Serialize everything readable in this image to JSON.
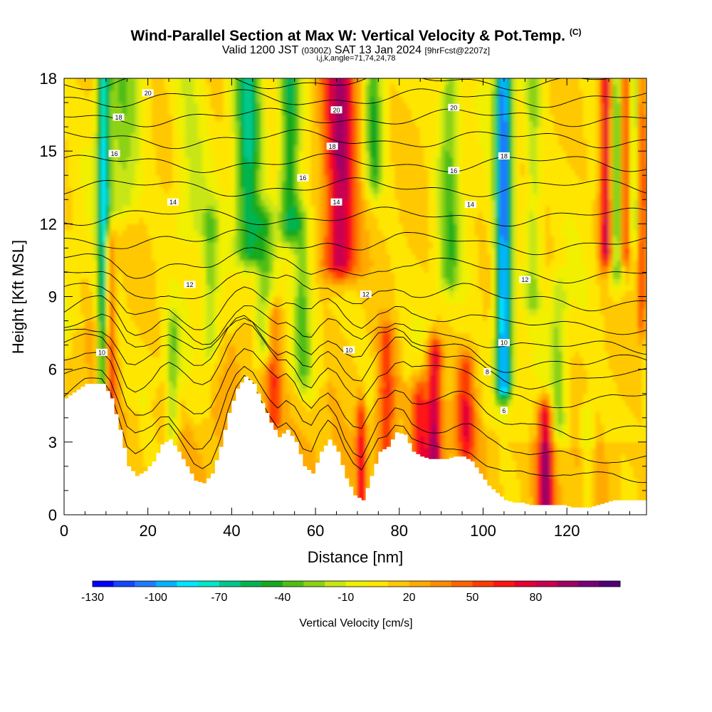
{
  "title": {
    "main": "Wind-Parallel Section at Max W: Vertical Velocity & Pot.Temp.",
    "copyright": "(C)",
    "valid_prefix": "Valid 1200 JST",
    "valid_utc": "(0300Z)",
    "valid_date": "SAT 13 Jan 2024",
    "forecast": "[9hrFcst@2207z]",
    "ijk": "i,j,k,angle=71,74,24,78"
  },
  "chart_data": {
    "type": "heatmap",
    "xlabel": "Distance [nm]",
    "ylabel": "Height [Kft MSL]",
    "xlim": [
      0,
      139
    ],
    "ylim": [
      0,
      18
    ],
    "x_ticks": [
      "0",
      "20",
      "40",
      "60",
      "80",
      "100",
      "120"
    ],
    "x_tick_values": [
      0,
      20,
      40,
      60,
      80,
      100,
      120
    ],
    "y_ticks": [
      "0",
      "3",
      "6",
      "9",
      "12",
      "15",
      "18"
    ],
    "y_tick_values": [
      0,
      3,
      6,
      9,
      12,
      15,
      18
    ],
    "colorbar": {
      "label": "Vertical Velocity [cm/s]",
      "tick_labels": [
        "-130",
        "-100",
        "-70",
        "-40",
        "-10",
        "20",
        "50",
        "80"
      ],
      "tick_values": [
        -130,
        -100,
        -70,
        -40,
        -10,
        20,
        50,
        80
      ],
      "colors": [
        "#0000ff",
        "#1446ff",
        "#1e7cff",
        "#00b4ff",
        "#00e6ff",
        "#00e6c8",
        "#00c88c",
        "#00b450",
        "#14aa1e",
        "#50be14",
        "#8cd214",
        "#c8e614",
        "#f0f000",
        "#ffe600",
        "#ffc800",
        "#ffaa00",
        "#ff8c00",
        "#ff6400",
        "#ff3c00",
        "#ff1414",
        "#e60032",
        "#c80050",
        "#a00064",
        "#780078",
        "#500078"
      ]
    },
    "terrain_profile": {
      "x": [
        0,
        5,
        9,
        11,
        13,
        15,
        17,
        19,
        21,
        23,
        25,
        27,
        29,
        31,
        33,
        35,
        37,
        39,
        41,
        43,
        45,
        47,
        49,
        51,
        53,
        55,
        57,
        59,
        61,
        63,
        65,
        67,
        69,
        71,
        73,
        75,
        77,
        79,
        81,
        83,
        85,
        87,
        89,
        91,
        93,
        95,
        97,
        99,
        101,
        103,
        105,
        107,
        109,
        111,
        113,
        115,
        117,
        119,
        121,
        123,
        125,
        127,
        129,
        131,
        133,
        135,
        137,
        139
      ],
      "height": [
        4.8,
        5.4,
        5.4,
        4.8,
        3.5,
        2.0,
        1.6,
        1.8,
        2.2,
        2.9,
        3.1,
        2.6,
        2.0,
        1.4,
        1.3,
        1.7,
        2.8,
        4.2,
        5.2,
        5.7,
        5.4,
        4.6,
        3.8,
        3.2,
        3.5,
        3.0,
        2.0,
        1.7,
        2.6,
        3.1,
        2.6,
        1.5,
        0.8,
        0.6,
        1.6,
        2.6,
        2.8,
        3.4,
        3.3,
        2.6,
        2.4,
        2.3,
        2.3,
        2.3,
        2.4,
        2.4,
        2.2,
        1.7,
        1.2,
        0.9,
        0.6,
        0.5,
        0.5,
        0.4,
        0.4,
        0.4,
        0.4,
        0.4,
        0.3,
        0.3,
        0.3,
        0.4,
        0.5,
        0.6,
        0.6,
        0.6,
        0.6,
        0.6
      ]
    },
    "theta_contours": {
      "levels": [
        4,
        5,
        6,
        7,
        8,
        9,
        10,
        11,
        12,
        13,
        14,
        15,
        16,
        17,
        18,
        19,
        20,
        21
      ],
      "base_height_kft": [
        1.2,
        2.1,
        3.3,
        4.6,
        5.4,
        6.0,
        6.7,
        7.6,
        8.7,
        9.9,
        11.1,
        12.3,
        13.5,
        14.5,
        15.5,
        16.4,
        17.2,
        17.9
      ],
      "labeled": [
        {
          "text": "20",
          "x": 20,
          "y": 17.4
        },
        {
          "text": "18",
          "x": 13,
          "y": 16.4
        },
        {
          "text": "16",
          "x": 12,
          "y": 14.9
        },
        {
          "text": "14",
          "x": 26,
          "y": 12.9
        },
        {
          "text": "12",
          "x": 30,
          "y": 9.5
        },
        {
          "text": "10",
          "x": 9,
          "y": 6.7
        },
        {
          "text": "16",
          "x": 57,
          "y": 13.9
        },
        {
          "text": "20",
          "x": 65,
          "y": 16.7
        },
        {
          "text": "18",
          "x": 64,
          "y": 15.2
        },
        {
          "text": "14",
          "x": 65,
          "y": 12.9
        },
        {
          "text": "12",
          "x": 72,
          "y": 9.1
        },
        {
          "text": "10",
          "x": 68,
          "y": 6.8
        },
        {
          "text": "20",
          "x": 93,
          "y": 16.8
        },
        {
          "text": "16",
          "x": 93,
          "y": 14.2
        },
        {
          "text": "14",
          "x": 97,
          "y": 12.8
        },
        {
          "text": "18",
          "x": 105,
          "y": 14.8
        },
        {
          "text": "12",
          "x": 110,
          "y": 9.7
        },
        {
          "text": "10",
          "x": 105,
          "y": 7.1
        },
        {
          "text": "8",
          "x": 101,
          "y": 5.9
        },
        {
          "text": "6",
          "x": 105,
          "y": 4.3
        }
      ]
    },
    "plumes": [
      {
        "x": 9.5,
        "w": 1.5,
        "z0": 5.5,
        "z1": 18,
        "v": -80
      },
      {
        "x": 11,
        "w": 1.2,
        "z0": 4.5,
        "z1": 11,
        "v": 55
      },
      {
        "x": 14,
        "w": 4,
        "z0": 13,
        "z1": 18,
        "v": -30
      },
      {
        "x": 26,
        "w": 1.5,
        "z0": 3.5,
        "z1": 7.5,
        "v": -35
      },
      {
        "x": 30,
        "w": 4,
        "z0": 12,
        "z1": 18,
        "v": -20
      },
      {
        "x": 35,
        "w": 2,
        "z0": 7,
        "z1": 12,
        "v": -30
      },
      {
        "x": 44,
        "w": 3,
        "z0": 11,
        "z1": 18,
        "v": -65
      },
      {
        "x": 48,
        "w": 2.5,
        "z0": 7,
        "z1": 12,
        "v": -45
      },
      {
        "x": 50,
        "w": 2,
        "z0": 4,
        "z1": 8,
        "v": 45
      },
      {
        "x": 54,
        "w": 2.5,
        "z0": 12,
        "z1": 18,
        "v": -65
      },
      {
        "x": 57,
        "w": 2,
        "z0": 6,
        "z1": 12,
        "v": -35
      },
      {
        "x": 66,
        "w": 4,
        "z0": 10.5,
        "z1": 18,
        "v": 85
      },
      {
        "x": 71,
        "w": 1,
        "z0": 0.5,
        "z1": 4,
        "v": 55
      },
      {
        "x": 74,
        "w": 2,
        "z0": 14,
        "z1": 18,
        "v": -45
      },
      {
        "x": 77,
        "w": 2,
        "z0": 2.5,
        "z1": 7,
        "v": 45
      },
      {
        "x": 85,
        "w": 2,
        "z0": 2.5,
        "z1": 5,
        "v": 50
      },
      {
        "x": 88.5,
        "w": 1.8,
        "z0": 2.3,
        "z1": 6.5,
        "v": 75
      },
      {
        "x": 92,
        "w": 2.5,
        "z0": 10,
        "z1": 18,
        "v": -40
      },
      {
        "x": 96,
        "w": 2,
        "z0": 3,
        "z1": 6,
        "v": 45
      },
      {
        "x": 105,
        "w": 2,
        "z0": 5.5,
        "z1": 18,
        "v": -115
      },
      {
        "x": 115,
        "w": 1.8,
        "z0": 0.5,
        "z1": 4,
        "v": 80
      },
      {
        "x": 112,
        "w": 2,
        "z0": 9,
        "z1": 18,
        "v": -30
      },
      {
        "x": 118,
        "w": 2,
        "z0": 4,
        "z1": 9,
        "v": -30
      },
      {
        "x": 125,
        "w": 1.5,
        "z0": 1,
        "z1": 4,
        "v": -25
      },
      {
        "x": 129.5,
        "w": 1.5,
        "z0": 11,
        "z1": 18,
        "v": 80
      },
      {
        "x": 132,
        "w": 1.8,
        "z0": 10,
        "z1": 18,
        "v": -45
      },
      {
        "x": 134,
        "w": 1.2,
        "z0": 11,
        "z1": 18,
        "v": 65
      },
      {
        "x": 136,
        "w": 1.5,
        "z0": 12,
        "z1": 18,
        "v": -30
      },
      {
        "x": 138,
        "w": 1,
        "z0": 8,
        "z1": 18,
        "v": 45
      }
    ]
  }
}
